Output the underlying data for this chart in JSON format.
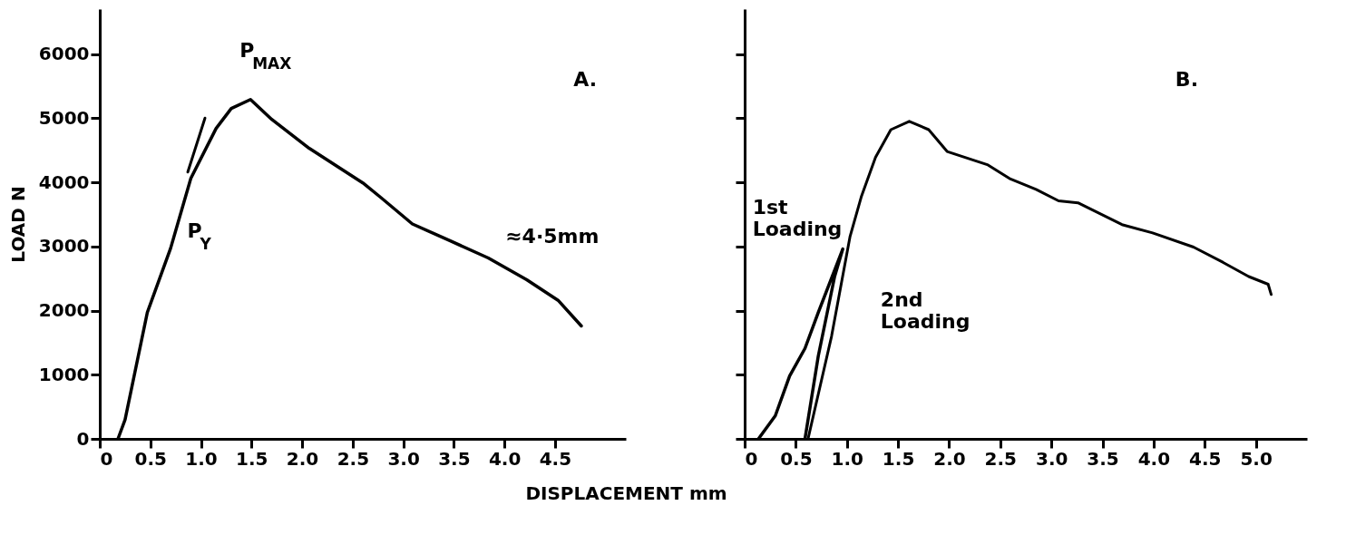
{
  "chart_data": [
    {
      "type": "line",
      "title": "A.",
      "xlabel": "DISPLACEMENT   mm",
      "ylabel": "LOAD  N",
      "xlim": [
        0,
        5.2
      ],
      "ylim": [
        0,
        6700
      ],
      "xticks": [
        0,
        0.5,
        {
          "value": 1,
          "label": "1.0"
        },
        1.5,
        {
          "value": 2,
          "label": "2.0"
        },
        2.5,
        {
          "value": 3,
          "label": "3.0"
        },
        3.5,
        {
          "value": 4,
          "label": "4.0"
        },
        4.5
      ],
      "yticks": [
        0,
        1000,
        2000,
        3000,
        4000,
        5000,
        6000
      ],
      "grid": false,
      "series": [
        {
          "color": "#000000",
          "x": [
            0.18,
            0.25,
            0.47,
            0.7,
            0.9,
            1.15,
            1.3,
            1.49,
            1.7,
            2.07,
            2.6,
            2.78,
            3.09,
            3.46,
            3.84,
            4.22,
            4.53,
            4.76
          ],
          "values": [
            0,
            300,
            1970,
            2970,
            4060,
            4840,
            5150,
            5290,
            4980,
            4530,
            3990,
            3760,
            3350,
            3090,
            2820,
            2480,
            2160,
            1760
          ]
        },
        {
          "color": "#000000",
          "x": [
            0.87,
            1.04
          ],
          "values": [
            4160,
            5000
          ]
        }
      ],
      "annotations": [
        {
          "text": "P$_{MAX}$",
          "x": 1.49,
          "y": 5290
        },
        {
          "text": "P$_{Y}$",
          "x": 0.9,
          "y": 4060
        },
        "≈4·5mm"
      ]
    },
    {
      "type": "line",
      "title": "B.",
      "tick_labels": "x",
      "xlim": [
        0,
        5.5
      ],
      "ylim": [
        0,
        6700
      ],
      "xticks": [
        0,
        0.5,
        {
          "value": 1,
          "label": "1.0"
        },
        1.5,
        {
          "value": 2,
          "label": "2.0"
        },
        2.5,
        {
          "value": 3,
          "label": "3.0"
        },
        3.5,
        {
          "value": 4,
          "label": "4.0"
        },
        4.5,
        {
          "value": 5,
          "label": "5.0"
        }
      ],
      "yticks": [
        0,
        1000,
        2000,
        3000,
        4000,
        5000,
        6000
      ],
      "grid": false,
      "series": [
        {
          "color": "#000000",
          "x": [
            0.135,
            0.3,
            0.44,
            0.59,
            0.72,
            0.96,
            0.88,
            0.72,
            0.59
          ],
          "values": [
            0,
            360,
            980,
            1410,
            1970,
            2960,
            2530,
            1290,
            0
          ]
        },
        {
          "color": "#000000",
          "x": [
            0.62,
            0.85,
            1.03,
            1.14,
            1.28,
            1.43,
            1.61,
            1.8,
            1.98,
            2.38,
            2.6,
            2.85,
            3.07,
            3.26,
            3.69,
            3.99,
            4.39,
            4.68,
            4.93,
            5.12,
            5.15
          ],
          "values": [
            0,
            1600,
            3150,
            3770,
            4390,
            4820,
            4950,
            4820,
            4480,
            4270,
            4050,
            3890,
            3710,
            3680,
            3340,
            3210,
            2990,
            2750,
            2530,
            2410,
            2250
          ]
        }
      ],
      "annotations": [
        "1st Loading",
        {
          "text": "2nd Loading",
          "x": 0.85,
          "y": 1600
        }
      ]
    }
  ]
}
